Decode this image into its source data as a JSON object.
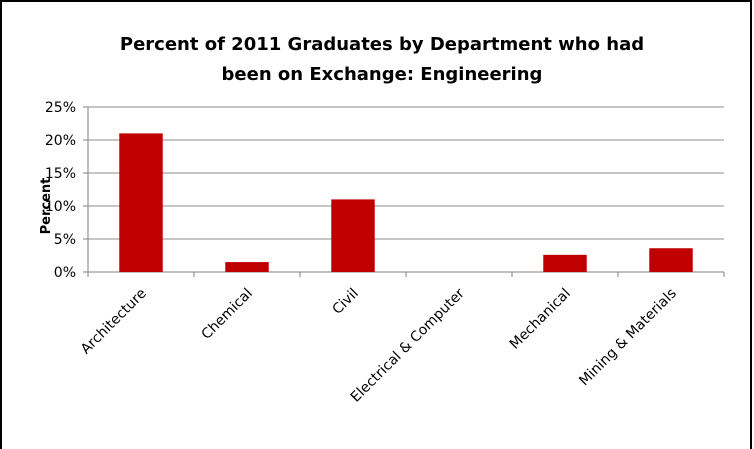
{
  "chart_data": {
    "type": "bar",
    "title": "Percent of 2011 Graduates by Department who had been on Exchange: Engineering",
    "title_lines": [
      "Percent of 2011 Graduates by Department who had",
      "been on Exchange: Engineering"
    ],
    "xlabel": "",
    "ylabel": "Percent",
    "categories": [
      "Architecture",
      "Chemical",
      "Civil",
      "Electrical & Computer",
      "Mechanical",
      "Mining & Materials"
    ],
    "values": [
      21,
      1.5,
      11,
      0,
      2.6,
      3.6
    ],
    "ylim": [
      0,
      25
    ],
    "yticks": [
      0,
      5,
      10,
      15,
      20,
      25
    ],
    "ytick_labels": [
      "0%",
      "5%",
      "10%",
      "15%",
      "20%",
      "25%"
    ],
    "grid": true,
    "legend": "none",
    "bar_color": "#C00000"
  }
}
